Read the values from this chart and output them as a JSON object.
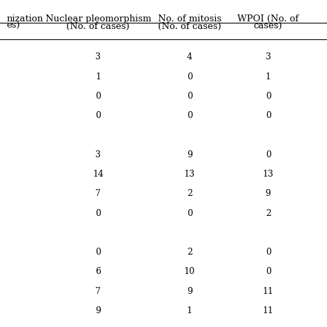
{
  "col_headers": [
    "Nuclear pleomorphism\n(No. of cases)",
    "No. of mitosis\n(No. of cases)",
    "WPOI (No. of\ncases)"
  ],
  "partial_left_header": "nization\nes)",
  "rows": [
    [
      "3",
      "4",
      "3"
    ],
    [
      "1",
      "0",
      "1"
    ],
    [
      "0",
      "0",
      "0"
    ],
    [
      "0",
      "0",
      "0"
    ],
    [
      "",
      "",
      ""
    ],
    [
      "3",
      "9",
      "0"
    ],
    [
      "14",
      "13",
      "13"
    ],
    [
      "7",
      "2",
      "9"
    ],
    [
      "0",
      "0",
      "2"
    ],
    [
      "",
      "",
      ""
    ],
    [
      "0",
      "2",
      "0"
    ],
    [
      "6",
      "10",
      "0"
    ],
    [
      "7",
      "9",
      "11"
    ],
    [
      "9",
      "1",
      "11"
    ]
  ],
  "background_color": "#ffffff",
  "text_color": "#000000",
  "font_size": 9,
  "header_font_size": 9.5,
  "fig_width": 4.74,
  "fig_height": 4.74
}
